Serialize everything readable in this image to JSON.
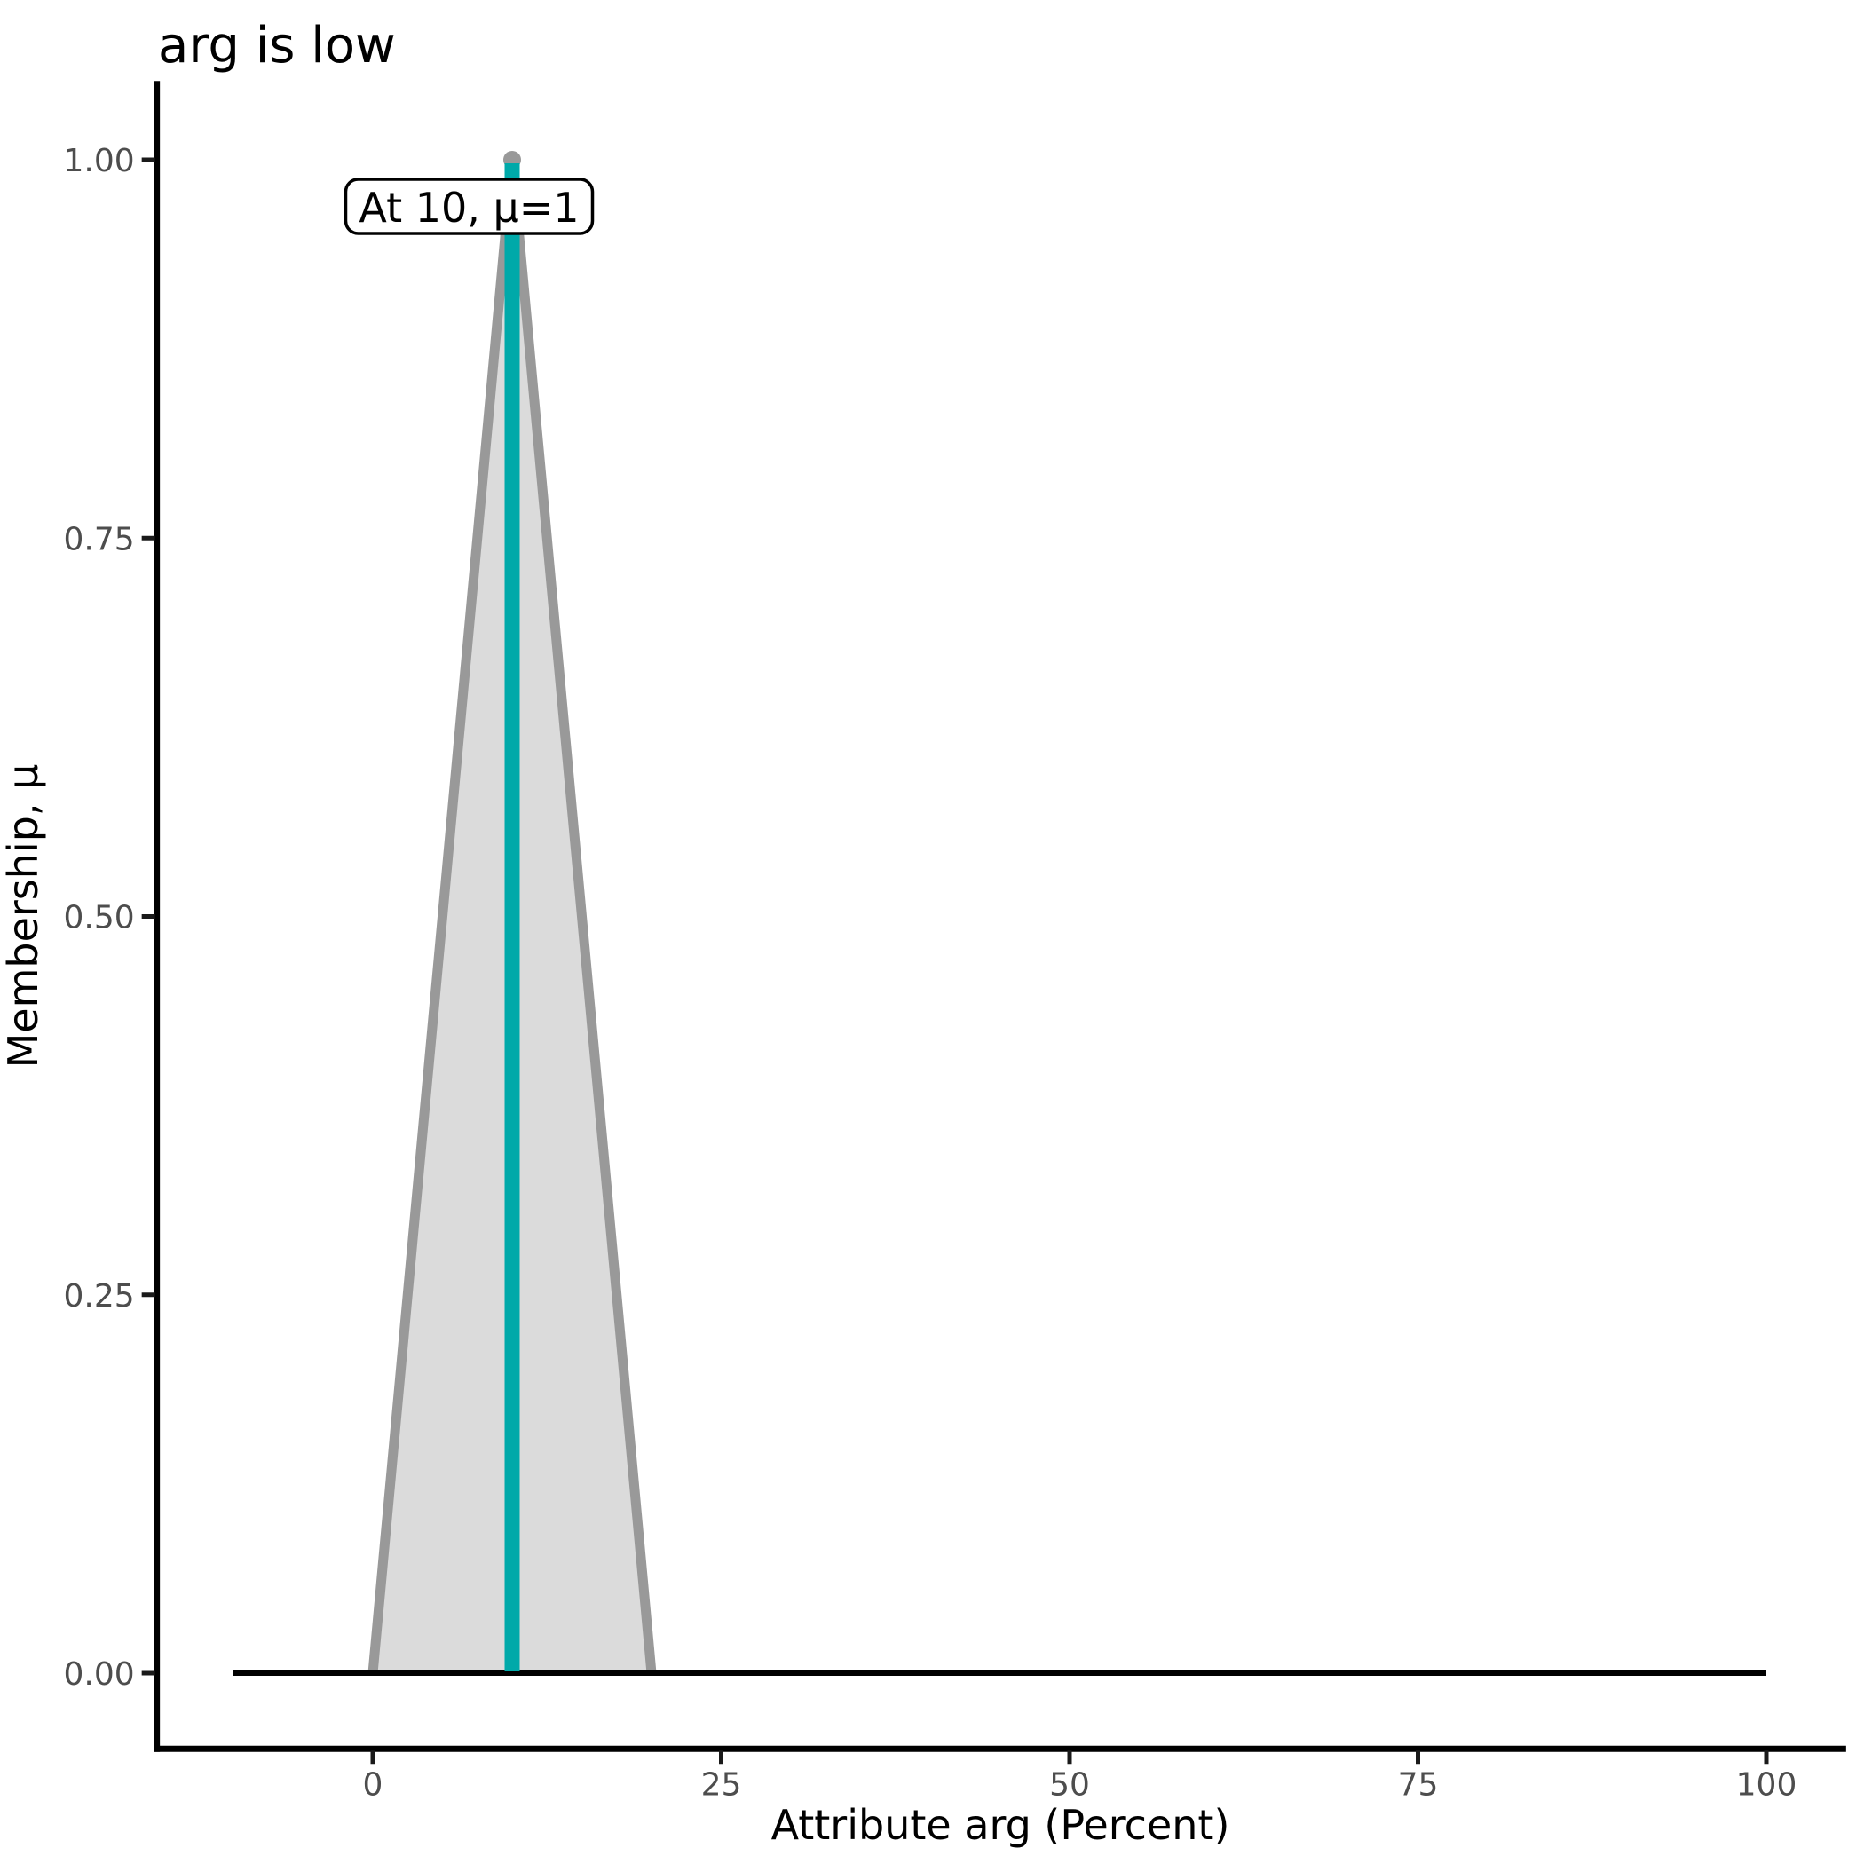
{
  "page": {
    "background": "#FFFFFF"
  },
  "chart_data": {
    "type": "area",
    "title": "arg is low",
    "xlabel": "Attribute arg (Percent)",
    "ylabel": "Membership, μ",
    "grid": "off",
    "legend": "none",
    "xlim": [
      -15.5,
      105.5
    ],
    "ylim": [
      -0.05,
      1.05
    ],
    "x_ticks": {
      "values": [
        0,
        25,
        50,
        75,
        100
      ],
      "labels": [
        "0",
        "25",
        "50",
        "75",
        "100"
      ]
    },
    "y_ticks": {
      "values": [
        0,
        0.25,
        0.5,
        0.75,
        1
      ],
      "labels": [
        "0.00",
        "0.25",
        "0.50",
        "0.75",
        "1.00"
      ]
    },
    "series": [
      {
        "name": "low-membership-triangle",
        "type": "area",
        "points": [
          [
            0,
            0
          ],
          [
            10,
            1
          ],
          [
            20,
            0
          ]
        ],
        "fill": "#DBDBDB",
        "stroke": "#999999"
      },
      {
        "name": "zero-baseline",
        "type": "line",
        "points": [
          [
            -10,
            0
          ],
          [
            100,
            0
          ]
        ],
        "color": "#000000"
      },
      {
        "name": "peak-membership-line",
        "type": "vline",
        "x": 10,
        "y0": 0,
        "y1": 1,
        "color": "#00A9A9"
      },
      {
        "name": "peak-point",
        "type": "point",
        "x": 10,
        "y": 1,
        "color": "#999999"
      }
    ],
    "annotation": {
      "text": "At 10, μ=1",
      "x": 10,
      "y": 1
    }
  },
  "colors": {
    "accent_teal": "#00A9A9",
    "triangle_fill": "#DBDBDB",
    "triangle_stroke": "#999999",
    "tick_label": "#4D4D4D",
    "axis_line": "#000000",
    "annotation_bg": "#FFFFFF",
    "annotation_border": "#000000"
  }
}
